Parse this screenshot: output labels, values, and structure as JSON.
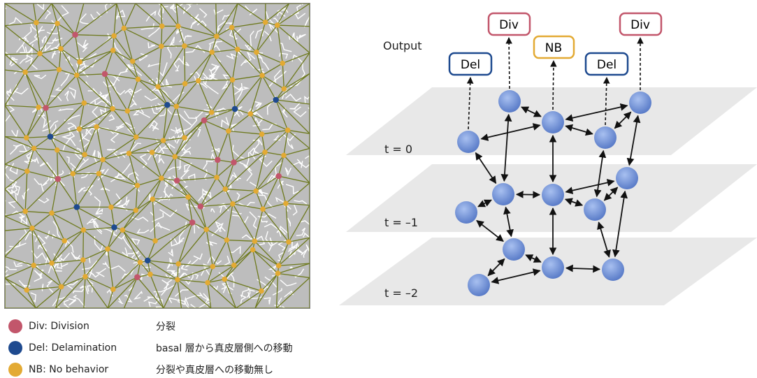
{
  "colors": {
    "division": "#c2566b",
    "delamination": "#1e4a8f",
    "no_behavior": "#e3aa33",
    "tissue_bg": "#bdbdbd",
    "cell_edges": "#ffffff",
    "graph_edges": "#6e7a1e",
    "node_fill": "#6c8fd6",
    "plane_fill": "#e6e6e6"
  },
  "legend": [
    {
      "term": "Div: Division",
      "japanese": "分裂",
      "color_key": "division"
    },
    {
      "term": "Del: Delamination",
      "japanese": "basal 層から真皮層側への移動",
      "color_key": "delamination"
    },
    {
      "term": "NB: No behavior",
      "japanese": "分裂や真皮層への移動無し",
      "color_key": "no_behavior"
    }
  ],
  "network": {
    "output_label": "Output",
    "time_labels": [
      "t = 0",
      "t = –1",
      "t = –2"
    ],
    "output_boxes": [
      {
        "label": "Del",
        "color_key": "delamination"
      },
      {
        "label": "Div",
        "color_key": "division"
      },
      {
        "label": "NB",
        "color_key": "no_behavior"
      },
      {
        "label": "Del",
        "color_key": "delamination"
      },
      {
        "label": "Div",
        "color_key": "division"
      }
    ]
  }
}
